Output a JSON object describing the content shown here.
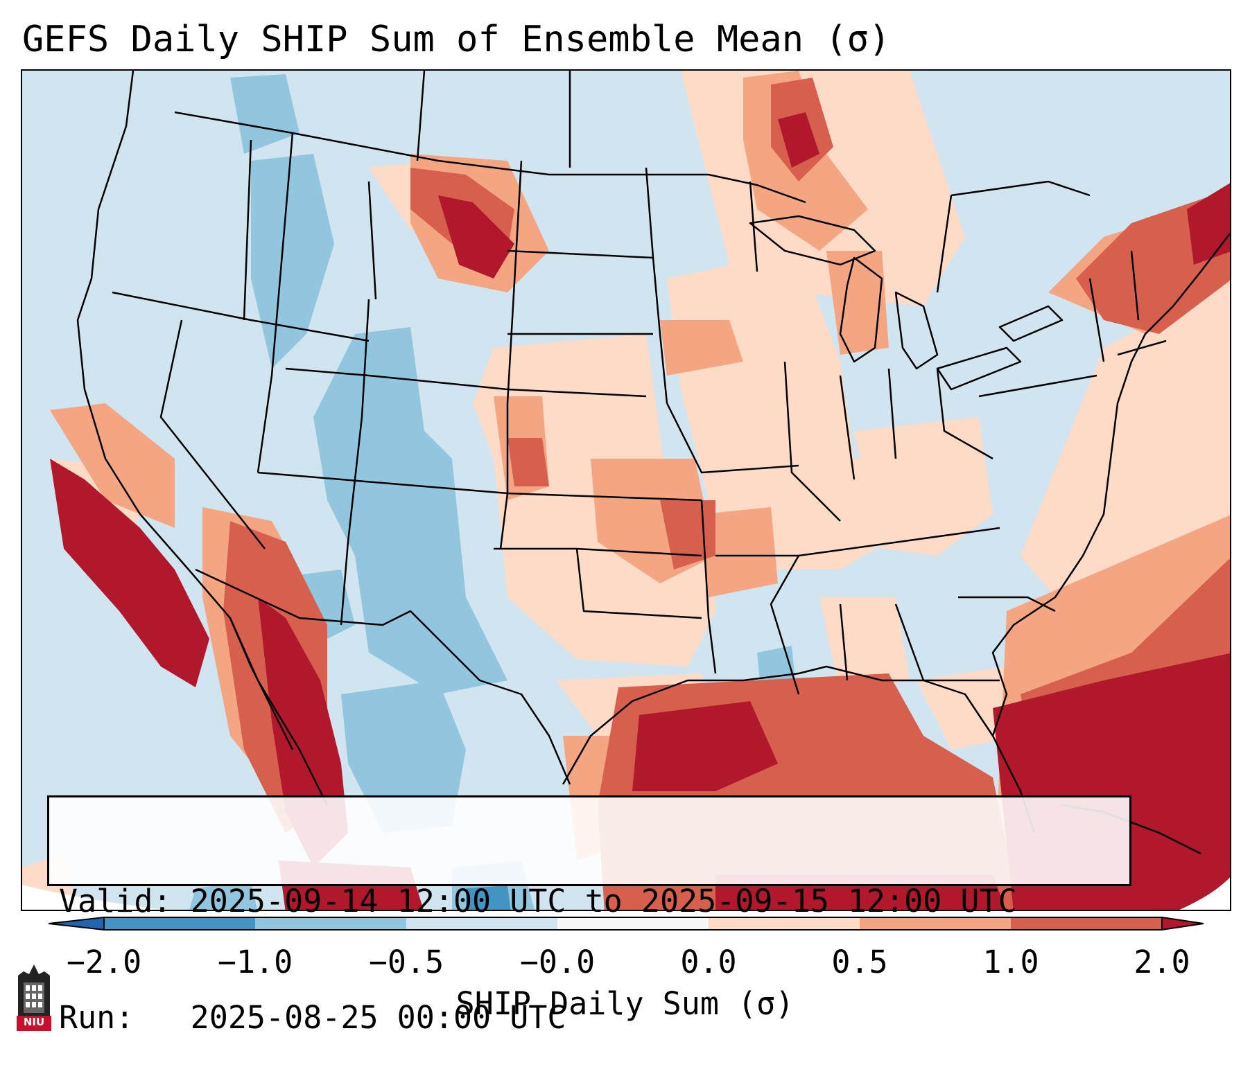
{
  "title": "GEFS Daily SHIP Sum of Ensemble Mean (σ)",
  "info": {
    "valid": "Valid: 2025-09-14 12:00 UTC to 2025-09-15 12:00 UTC",
    "run": "Run:   2025-08-25 00:00 UTC"
  },
  "colorbar": {
    "label": "SHIP Daily Sum (σ)",
    "ticks": [
      "−2.0",
      "−1.0",
      "−0.5",
      "−0.0",
      "0.0",
      "0.5",
      "1.0",
      "2.0"
    ],
    "colors": [
      "#4393c3",
      "#92c5de",
      "#d1e5f0",
      "#f7f7f7",
      "#fddbc7",
      "#f4a582",
      "#d6604d",
      "#b2182b"
    ],
    "under_color": "#2166ac",
    "over_color": "#67001f"
  },
  "logo": {
    "text": "NIU",
    "color": "#c8102e"
  }
}
